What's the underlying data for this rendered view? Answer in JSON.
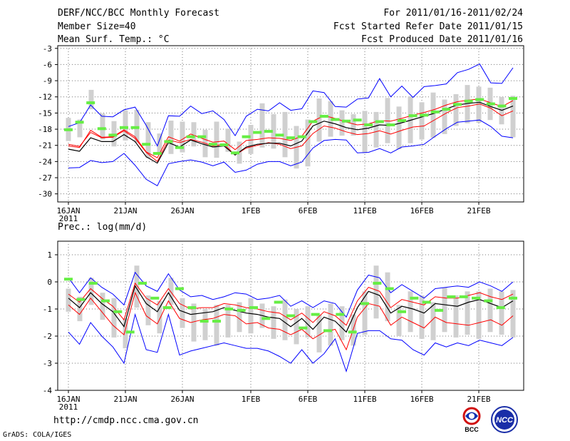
{
  "header": {
    "title": "DERF/NCC/BCC Monthly Forecast",
    "member_size": "Member Size=40",
    "variable": "Mean Surf. Temp.: °C",
    "period": "For 2011/01/16-2011/02/24",
    "started": "Fcst Started Refer Date 2011/01/15",
    "produced": "Fcst Produced Date 2011/01/16"
  },
  "footer": {
    "url": "http://cmdp.ncc.cma.gov.cn",
    "credit": "GrADS: COLA/IGES",
    "logo_bcc": "BCC",
    "logo_ncc": "NCC"
  },
  "colors": {
    "envelope": "#0000ff",
    "spread": "#ff0000",
    "mean": "#000000",
    "obs": "#66ee44",
    "box": "#d0d0d0"
  },
  "chart_data": [
    {
      "type": "line",
      "title": "Mean Surf. Temp.: °C",
      "xlabel": "",
      "ylabel": "",
      "days": 40,
      "ylim": [
        -31.5,
        -2.5
      ],
      "yticks": [
        -3,
        -6,
        -9,
        -12,
        -15,
        -18,
        -21,
        -24,
        -27,
        -30
      ],
      "xticks": [
        {
          "day": 1,
          "label": "16JAN"
        },
        {
          "day": 6,
          "label": "21JAN"
        },
        {
          "day": 11,
          "label": "26JAN"
        },
        {
          "day": 17,
          "label": "1FEB"
        },
        {
          "day": 22,
          "label": "6FEB"
        },
        {
          "day": 27,
          "label": "11FEB"
        },
        {
          "day": 32,
          "label": "16FEB"
        },
        {
          "day": 37,
          "label": "21FEB"
        }
      ],
      "year_label": "2011",
      "series": [
        {
          "name": "max",
          "values": [
            -25.2,
            -25.1,
            -23.8,
            -24.2,
            -24,
            -22.5,
            -24.7,
            -27.3,
            -28.5,
            -24.4,
            -24,
            -23.7,
            -24.1,
            -24.8,
            -24.1,
            -26,
            -25.6,
            -24.5,
            -24,
            -24,
            -24.8,
            -24.1,
            -21.5,
            -20.1,
            -19.9,
            -20,
            -22.4,
            -22.3,
            -21.6,
            -22.4,
            -21.3,
            -21.1,
            -20.8,
            -19.3,
            -17.9,
            -16.7,
            -16.5,
            -16.3,
            -17.5,
            -19.3,
            -19.6
          ]
        },
        {
          "name": "upper",
          "values": [
            -20.8,
            -21.2,
            -18.6,
            -19.6,
            -19.5,
            -18.3,
            -19.7,
            -22.3,
            -24,
            -20,
            -20.5,
            -19.9,
            -20.4,
            -21.1,
            -20.8,
            -22.8,
            -21.5,
            -21,
            -20.5,
            -20.8,
            -21.6,
            -21.1,
            -18.8,
            -17.4,
            -17.8,
            -18.5,
            -19,
            -18.8,
            -18.3,
            -18.9,
            -18.2,
            -17.6,
            -17.4,
            -16.2,
            -15,
            -14,
            -13.7,
            -13.3,
            -14.1,
            -15.5,
            -14.6
          ]
        },
        {
          "name": "mean",
          "values": [
            -21.7,
            -22.1,
            -19.6,
            -20.3,
            -20.3,
            -19,
            -20.3,
            -23.1,
            -24.3,
            -20.5,
            -21.3,
            -20,
            -20.7,
            -21.3,
            -21.1,
            -22.8,
            -21.3,
            -20.8,
            -20.6,
            -20.6,
            -21.1,
            -20.2,
            -17.4,
            -16.5,
            -17,
            -17.7,
            -18.1,
            -17.8,
            -17.2,
            -17.3,
            -16.8,
            -16.2,
            -15.6,
            -15,
            -14.2,
            -13.5,
            -13.2,
            -13,
            -13.8,
            -14.5,
            -13.7
          ]
        },
        {
          "name": "lower",
          "values": [
            -21.1,
            -21.4,
            -18.2,
            -19.5,
            -19.4,
            -18.1,
            -19.4,
            -22.2,
            -23.3,
            -19.4,
            -20.2,
            -18.9,
            -19.7,
            -20.4,
            -20.2,
            -21.8,
            -20.1,
            -19.9,
            -19.6,
            -19.7,
            -20.1,
            -19.3,
            -16.5,
            -15.5,
            -16,
            -16.7,
            -17.2,
            -17,
            -16.4,
            -16.5,
            -16,
            -15.4,
            -14.9,
            -14.3,
            -13.5,
            -12.9,
            -12.6,
            -12.4,
            -13.1,
            -13.8,
            -12.7
          ]
        },
        {
          "name": "min",
          "values": [
            -17.5,
            -16.8,
            -13.5,
            -15.6,
            -15.7,
            -14.4,
            -13.9,
            -17.3,
            -21.1,
            -15.5,
            -15.6,
            -13.7,
            -15.1,
            -14.6,
            -16.2,
            -19.2,
            -15.6,
            -14.3,
            -14.6,
            -13.1,
            -14.5,
            -14.2,
            -10.9,
            -11.2,
            -13.8,
            -13.9,
            -12.4,
            -12.2,
            -8.6,
            -12,
            -10,
            -12.1,
            -10.1,
            -9.9,
            -9.6,
            -7.5,
            -6.9,
            -5.9,
            -9.4,
            -9.5,
            -6.6
          ]
        }
      ],
      "boxes": [
        {
          "day": 1,
          "lo": -20.2,
          "hi": -15.9
        },
        {
          "day": 2,
          "lo": -19.5,
          "hi": -16.2
        },
        {
          "day": 3,
          "lo": -14.3,
          "hi": -10.7
        },
        {
          "day": 4,
          "lo": -19.9,
          "hi": -15.1
        },
        {
          "day": 5,
          "lo": -21.2,
          "hi": -16.5
        },
        {
          "day": 6,
          "lo": -20.1,
          "hi": -14.5
        },
        {
          "day": 7,
          "lo": -20.5,
          "hi": -14.4
        },
        {
          "day": 8,
          "lo": -23.4,
          "hi": -16.7
        },
        {
          "day": 9,
          "lo": -22.5,
          "hi": -18.8
        },
        {
          "day": 10,
          "lo": -22.6,
          "hi": -16.4
        },
        {
          "day": 11,
          "lo": -22.3,
          "hi": -16.6
        },
        {
          "day": 12,
          "lo": -21.2,
          "hi": -16.7
        },
        {
          "day": 13,
          "lo": -23.2,
          "hi": -18.1
        },
        {
          "day": 14,
          "lo": -23.3,
          "hi": -16.6
        },
        {
          "day": 15,
          "lo": -22.2,
          "hi": -17.9
        },
        {
          "day": 16,
          "lo": -24.4,
          "hi": -20.3
        },
        {
          "day": 17,
          "lo": -22.6,
          "hi": -17.2
        },
        {
          "day": 18,
          "lo": -21.4,
          "hi": -13.2
        },
        {
          "day": 19,
          "lo": -21.6,
          "hi": -15.2
        },
        {
          "day": 20,
          "lo": -23.2,
          "hi": -14.8
        },
        {
          "day": 21,
          "lo": -25.3,
          "hi": -17.4
        },
        {
          "day": 22,
          "lo": -24.9,
          "hi": -16.2
        },
        {
          "day": 23,
          "lo": -20.3,
          "hi": -12.3
        },
        {
          "day": 24,
          "lo": -19.4,
          "hi": -12.8
        },
        {
          "day": 25,
          "lo": -19.2,
          "hi": -14.5
        },
        {
          "day": 26,
          "lo": -19.2,
          "hi": -15.2
        },
        {
          "day": 27,
          "lo": -22.4,
          "hi": -14.6
        },
        {
          "day": 28,
          "lo": -21.4,
          "hi": -14.8
        },
        {
          "day": 29,
          "lo": -20.6,
          "hi": -12.2
        },
        {
          "day": 30,
          "lo": -21.7,
          "hi": -13.8
        },
        {
          "day": 31,
          "lo": -20.6,
          "hi": -11.9
        },
        {
          "day": 32,
          "lo": -19.9,
          "hi": -13
        },
        {
          "day": 33,
          "lo": -19.6,
          "hi": -11.2
        },
        {
          "day": 34,
          "lo": -18.9,
          "hi": -12.5
        },
        {
          "day": 35,
          "lo": -17.4,
          "hi": -11.5
        },
        {
          "day": 36,
          "lo": -16.9,
          "hi": -9.8
        },
        {
          "day": 37,
          "lo": -16.8,
          "hi": -10.1
        },
        {
          "day": 38,
          "lo": -16.3,
          "hi": -10.3
        },
        {
          "day": 39,
          "lo": -17.1,
          "hi": -12
        },
        {
          "day": 40,
          "lo": -19.5,
          "hi": -11.8
        }
      ],
      "observed": [
        -18.1,
        -16.7,
        -13.1,
        -17.9,
        -19.1,
        -17.7,
        -17.7,
        -20.8,
        -22.5,
        -20.3,
        -21.4,
        -19.4,
        -19.4,
        -20.8,
        -20.9,
        -22.4,
        -19.4,
        -18.6,
        -18.4,
        -19.1,
        -19.6,
        -19.4,
        -16.6,
        -15.6,
        -16.2,
        -16.5,
        -16.3,
        -17.2,
        -16.6,
        -17.2,
        -16.4,
        -15.5,
        -15.4,
        -14.8,
        -14.3,
        -13.4,
        -12.8,
        -12.5,
        -13.3,
        -13.7,
        -12.3
      ]
    },
    {
      "type": "line",
      "title": "Prec.: log(mm/d)",
      "xlabel": "",
      "ylabel": "",
      "days": 40,
      "ylim": [
        -4,
        1.5
      ],
      "yticks": [
        1,
        0,
        -1,
        -2,
        -3,
        -4
      ],
      "xticks": [
        {
          "day": 1,
          "label": "16JAN"
        },
        {
          "day": 6,
          "label": "21JAN"
        },
        {
          "day": 11,
          "label": "26JAN"
        },
        {
          "day": 17,
          "label": "1FEB"
        },
        {
          "day": 22,
          "label": "6FEB"
        },
        {
          "day": 27,
          "label": "11FEB"
        },
        {
          "day": 32,
          "label": "16FEB"
        },
        {
          "day": 37,
          "label": "21FEB"
        }
      ],
      "year_label": "2011",
      "series": [
        {
          "name": "max",
          "values": [
            -1.85,
            -2.3,
            -1.5,
            -2,
            -2.4,
            -3,
            -1.2,
            -2.5,
            -2.6,
            -1.2,
            -2.7,
            -2.55,
            -2.45,
            -2.35,
            -2.25,
            -2.35,
            -2.45,
            -2.45,
            -2.55,
            -2.75,
            -3,
            -2.5,
            -3,
            -2.65,
            -2.1,
            -3.3,
            -1.9,
            -1.8,
            -1.8,
            -2.1,
            -2.15,
            -2.5,
            -2.7,
            -2.25,
            -2.4,
            -2.25,
            -2.35,
            -2.15,
            -2.25,
            -2.35,
            -2.05
          ]
        },
        {
          "name": "upper",
          "values": [
            -0.85,
            -1.2,
            -0.6,
            -1.1,
            -1.6,
            -1.95,
            -0.4,
            -1.25,
            -1.55,
            -0.7,
            -1.35,
            -1.5,
            -1.4,
            -1.35,
            -1.2,
            -1.25,
            -1.55,
            -1.5,
            -1.7,
            -1.75,
            -1.95,
            -1.75,
            -2.1,
            -1.85,
            -1.75,
            -2.5,
            -1.3,
            -0.8,
            -0.9,
            -1.6,
            -1.3,
            -1.5,
            -1.7,
            -1.3,
            -1.5,
            -1.55,
            -1.6,
            -1.5,
            -1.4,
            -1.6,
            -1.25
          ]
        },
        {
          "name": "mean",
          "values": [
            -0.6,
            -0.95,
            -0.4,
            -0.8,
            -1.1,
            -1.65,
            -0.15,
            -0.8,
            -1.1,
            -0.4,
            -1.05,
            -1.2,
            -1.15,
            -1.1,
            -0.95,
            -1.05,
            -1.15,
            -1.2,
            -1.3,
            -1.35,
            -1.65,
            -1.35,
            -1.75,
            -1.3,
            -1.45,
            -1.85,
            -0.95,
            -0.35,
            -0.5,
            -1.15,
            -0.9,
            -1,
            -1.15,
            -0.8,
            -0.85,
            -0.9,
            -0.75,
            -0.65,
            -0.8,
            -0.95,
            -0.7
          ]
        },
        {
          "name": "lower",
          "values": [
            -0.45,
            -0.75,
            -0.25,
            -0.6,
            -0.9,
            -1.4,
            -0.05,
            -0.6,
            -0.85,
            -0.25,
            -0.8,
            -1,
            -0.95,
            -0.95,
            -0.8,
            -0.85,
            -0.95,
            -1,
            -1.1,
            -1.15,
            -1.4,
            -1.15,
            -1.5,
            -1.1,
            -1.25,
            -1.6,
            -0.7,
            -0.2,
            -0.35,
            -0.95,
            -0.65,
            -0.75,
            -0.85,
            -0.55,
            -0.6,
            -0.6,
            -0.5,
            -0.4,
            -0.55,
            -0.65,
            -0.45
          ]
        },
        {
          "name": "min",
          "values": [
            0.15,
            -0.4,
            0.15,
            -0.2,
            -0.45,
            -0.85,
            0.35,
            -0.15,
            -0.35,
            0.3,
            -0.3,
            -0.55,
            -0.5,
            -0.65,
            -0.55,
            -0.4,
            -0.45,
            -0.65,
            -0.6,
            -0.5,
            -0.9,
            -0.7,
            -0.95,
            -0.7,
            -0.8,
            -1.3,
            -0.3,
            0.25,
            0.15,
            -0.4,
            -0.1,
            -0.35,
            -0.6,
            -0.25,
            -0.2,
            -0.15,
            -0.2,
            0,
            -0.15,
            -0.35,
            0
          ]
        }
      ],
      "boxes": [
        {
          "day": 1,
          "lo": -1.1,
          "hi": -0.25
        },
        {
          "day": 2,
          "lo": -1.45,
          "hi": -0.55
        },
        {
          "day": 3,
          "lo": -0.85,
          "hi": 0.15
        },
        {
          "day": 4,
          "lo": -1.4,
          "hi": -0.4
        },
        {
          "day": 5,
          "lo": -2.05,
          "hi": -0.6
        },
        {
          "day": 6,
          "lo": -2.45,
          "hi": -1.35
        },
        {
          "day": 7,
          "lo": -0.95,
          "hi": 0.6
        },
        {
          "day": 8,
          "lo": -1.6,
          "hi": -0.5
        },
        {
          "day": 9,
          "lo": -1.9,
          "hi": -0.7
        },
        {
          "day": 10,
          "lo": -0.85,
          "hi": 0.15
        },
        {
          "day": 11,
          "lo": -1.7,
          "hi": -0.6
        },
        {
          "day": 12,
          "lo": -2.2,
          "hi": -0.8
        },
        {
          "day": 13,
          "lo": -2.15,
          "hi": -1
        },
        {
          "day": 14,
          "lo": -2.35,
          "hi": -0.85
        },
        {
          "day": 15,
          "lo": -2.05,
          "hi": -0.85
        },
        {
          "day": 16,
          "lo": -1.85,
          "hi": -0.75
        },
        {
          "day": 17,
          "lo": -1.9,
          "hi": -0.6
        },
        {
          "day": 18,
          "lo": -1.7,
          "hi": -0.8
        },
        {
          "day": 19,
          "lo": -2.1,
          "hi": -0.9
        },
        {
          "day": 20,
          "lo": -2.15,
          "hi": -0.65
        },
        {
          "day": 21,
          "lo": -2.3,
          "hi": -1
        },
        {
          "day": 22,
          "lo": -2.05,
          "hi": -0.9
        },
        {
          "day": 23,
          "lo": -2.6,
          "hi": -1.2
        },
        {
          "day": 24,
          "lo": -2.35,
          "hi": -0.8
        },
        {
          "day": 25,
          "lo": -2.15,
          "hi": -0.9
        },
        {
          "day": 26,
          "lo": -2.35,
          "hi": -1.2
        },
        {
          "day": 27,
          "lo": -1.95,
          "hi": -0.35
        },
        {
          "day": 28,
          "lo": -1.35,
          "hi": 0.6
        },
        {
          "day": 29,
          "lo": -1.45,
          "hi": 0.35
        },
        {
          "day": 30,
          "lo": -2,
          "hi": -0.85
        },
        {
          "day": 31,
          "lo": -1.85,
          "hi": -0.35
        },
        {
          "day": 32,
          "lo": -2.1,
          "hi": -0.5
        },
        {
          "day": 33,
          "lo": -2.15,
          "hi": -0.75
        },
        {
          "day": 34,
          "lo": -1.85,
          "hi": -0.2
        },
        {
          "day": 35,
          "lo": -2.05,
          "hi": -0.5
        },
        {
          "day": 36,
          "lo": -1.95,
          "hi": -0.35
        },
        {
          "day": 37,
          "lo": -2.1,
          "hi": -0.35
        },
        {
          "day": 38,
          "lo": -1.85,
          "hi": -0.25
        },
        {
          "day": 39,
          "lo": -1.95,
          "hi": -0.35
        },
        {
          "day": 40,
          "lo": -2.05,
          "hi": -0.3
        }
      ],
      "observed": [
        0.1,
        -0.65,
        -0.05,
        -0.7,
        -1.1,
        -1.85,
        -0.05,
        -0.6,
        -0.95,
        -0.25,
        -0.95,
        -1.45,
        -1.45,
        -1,
        -1.05,
        -0.95,
        -1.35,
        -0.75,
        -1.25,
        -1.7,
        -1.2,
        -1.8,
        -1.2,
        -1.85,
        -0.8,
        -0.05,
        -0.25,
        -1.1,
        -0.6,
        -0.75,
        -1.05,
        -0.55,
        -0.55,
        -0.6,
        -0.7,
        -0.95,
        -0.6
      ]
    }
  ]
}
